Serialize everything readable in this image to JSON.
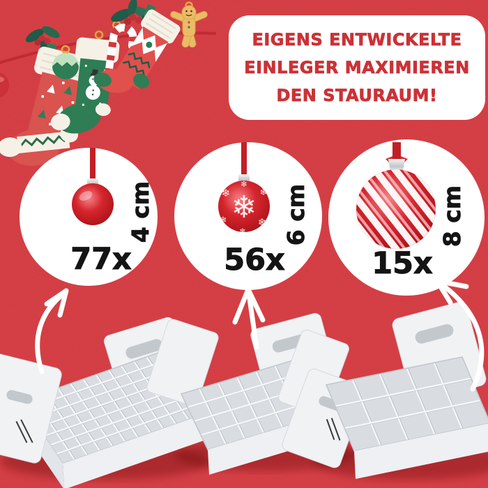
{
  "banner": {
    "lines": [
      "EIGENS ENTWICKELTE",
      "EINLEGER MAXIMIEREN",
      "DEN STAURAUM!"
    ]
  },
  "badges": [
    {
      "size": "4 cm",
      "count": "77x",
      "ball": "matte-red-bauble"
    },
    {
      "size": "6 cm",
      "count": "56x",
      "ball": "snowflake-red-bauble"
    },
    {
      "size": "8 cm",
      "count": "15x",
      "ball": "candy-swirl-bauble"
    }
  ],
  "icons": {
    "snowflake": "❄"
  },
  "garland": {
    "items": [
      "red-tree-stocking",
      "green-bauble",
      "snowman-stocking",
      "candy-cane",
      "holly-sprig",
      "diamond-pattern-stocking",
      "gingerbread-man"
    ]
  },
  "boxes": [
    {
      "name": "insert-tray-77-cells",
      "cols": 11,
      "rows": 7
    },
    {
      "name": "insert-tray-28-cells",
      "cols": 7,
      "rows": 4
    },
    {
      "name": "insert-tray-15-cells",
      "cols": 5,
      "rows": 3
    }
  ],
  "colors": {
    "background": "#d23a40",
    "banner_bg": "#ffffff",
    "banner_text": "#cc3136",
    "label_text": "#141414",
    "ball_red": "#c8102e",
    "ribbon_red": "#c11f27",
    "arrow": "#ffffff",
    "box_white": "#e7eaed",
    "holly_green": "#1e5b49",
    "gingerbread_tan": "#ecbb66"
  }
}
